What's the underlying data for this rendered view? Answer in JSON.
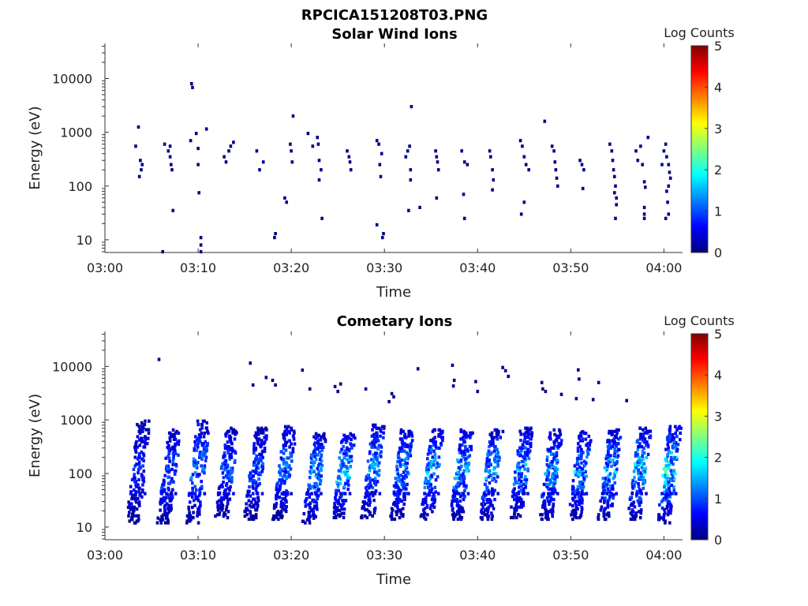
{
  "figure": {
    "file_title": "RPCICA151208T03.PNG"
  },
  "colormap": {
    "stops": [
      "#00007f",
      "#0000ff",
      "#00bfff",
      "#80ff80",
      "#ffd000",
      "#ff3000",
      "#7f0000"
    ]
  },
  "chart_data": [
    {
      "type": "heatmap",
      "title": "Solar Wind Ions",
      "xlabel": "Time",
      "ylabel": "Energy (eV)",
      "x_ticks": [
        "03:00",
        "03:10",
        "03:20",
        "03:30",
        "03:40",
        "03:50",
        "04:00"
      ],
      "xlim_minutes": [
        0,
        62
      ],
      "y_scale": "log",
      "y_ticks": [
        "10",
        "100",
        "1000",
        "10000"
      ],
      "ylim": [
        5.8,
        45000
      ],
      "colorbar": {
        "label": "Log Counts",
        "range": [
          0,
          5
        ],
        "ticks": [
          "0",
          "1",
          "2",
          "3",
          "4",
          "5"
        ]
      },
      "grid": false,
      "description_of_data": "Sparse single-count pixels (log counts ~0) scattered mostly between 30 eV and 1000 eV.",
      "points": [
        {
          "t": 3.3,
          "e": 550
        },
        {
          "t": 3.6,
          "e": 1250
        },
        {
          "t": 3.8,
          "e": 300
        },
        {
          "t": 3.9,
          "e": 200
        },
        {
          "t": 3.7,
          "e": 150
        },
        {
          "t": 4.0,
          "e": 250
        },
        {
          "t": 6.2,
          "e": 6
        },
        {
          "t": 6.4,
          "e": 600
        },
        {
          "t": 6.8,
          "e": 450
        },
        {
          "t": 7.0,
          "e": 350
        },
        {
          "t": 7.1,
          "e": 250
        },
        {
          "t": 7.2,
          "e": 200
        },
        {
          "t": 7.3,
          "e": 35
        },
        {
          "t": 7.0,
          "e": 550
        },
        {
          "t": 9.2,
          "e": 700
        },
        {
          "t": 9.3,
          "e": 8000
        },
        {
          "t": 9.4,
          "e": 6800
        },
        {
          "t": 9.8,
          "e": 950
        },
        {
          "t": 10.0,
          "e": 500
        },
        {
          "t": 10.0,
          "e": 250
        },
        {
          "t": 10.1,
          "e": 75
        },
        {
          "t": 10.3,
          "e": 11
        },
        {
          "t": 10.3,
          "e": 8
        },
        {
          "t": 10.3,
          "e": 6
        },
        {
          "t": 10.9,
          "e": 1150
        },
        {
          "t": 12.8,
          "e": 350
        },
        {
          "t": 13.0,
          "e": 280
        },
        {
          "t": 13.3,
          "e": 450
        },
        {
          "t": 13.5,
          "e": 550
        },
        {
          "t": 13.8,
          "e": 650
        },
        {
          "t": 16.3,
          "e": 450
        },
        {
          "t": 16.6,
          "e": 200
        },
        {
          "t": 17.0,
          "e": 280
        },
        {
          "t": 18.3,
          "e": 13
        },
        {
          "t": 18.2,
          "e": 11
        },
        {
          "t": 19.3,
          "e": 60
        },
        {
          "t": 19.5,
          "e": 50
        },
        {
          "t": 19.9,
          "e": 600
        },
        {
          "t": 20.0,
          "e": 450
        },
        {
          "t": 20.1,
          "e": 280
        },
        {
          "t": 20.2,
          "e": 2000
        },
        {
          "t": 21.8,
          "e": 950
        },
        {
          "t": 22.3,
          "e": 550
        },
        {
          "t": 22.8,
          "e": 800
        },
        {
          "t": 23.0,
          "e": 300
        },
        {
          "t": 23.2,
          "e": 200
        },
        {
          "t": 23.0,
          "e": 130
        },
        {
          "t": 23.3,
          "e": 25
        },
        {
          "t": 22.9,
          "e": 600
        },
        {
          "t": 26.0,
          "e": 450
        },
        {
          "t": 26.2,
          "e": 350
        },
        {
          "t": 26.3,
          "e": 280
        },
        {
          "t": 26.4,
          "e": 200
        },
        {
          "t": 29.2,
          "e": 700
        },
        {
          "t": 29.4,
          "e": 600
        },
        {
          "t": 29.5,
          "e": 250
        },
        {
          "t": 29.7,
          "e": 400
        },
        {
          "t": 29.6,
          "e": 150
        },
        {
          "t": 29.2,
          "e": 19
        },
        {
          "t": 29.9,
          "e": 13
        },
        {
          "t": 29.8,
          "e": 11
        },
        {
          "t": 32.3,
          "e": 350
        },
        {
          "t": 32.5,
          "e": 450
        },
        {
          "t": 32.7,
          "e": 550
        },
        {
          "t": 32.8,
          "e": 200
        },
        {
          "t": 32.8,
          "e": 130
        },
        {
          "t": 32.6,
          "e": 35
        },
        {
          "t": 32.9,
          "e": 3000
        },
        {
          "t": 33.8,
          "e": 40
        },
        {
          "t": 35.5,
          "e": 450
        },
        {
          "t": 35.6,
          "e": 350
        },
        {
          "t": 35.7,
          "e": 280
        },
        {
          "t": 35.8,
          "e": 200
        },
        {
          "t": 35.6,
          "e": 60
        },
        {
          "t": 38.3,
          "e": 450
        },
        {
          "t": 38.6,
          "e": 280
        },
        {
          "t": 38.9,
          "e": 250
        },
        {
          "t": 38.5,
          "e": 70
        },
        {
          "t": 38.6,
          "e": 25
        },
        {
          "t": 41.3,
          "e": 450
        },
        {
          "t": 41.4,
          "e": 350
        },
        {
          "t": 41.6,
          "e": 200
        },
        {
          "t": 41.7,
          "e": 130
        },
        {
          "t": 41.6,
          "e": 85
        },
        {
          "t": 44.6,
          "e": 700
        },
        {
          "t": 44.8,
          "e": 550
        },
        {
          "t": 45.0,
          "e": 350
        },
        {
          "t": 45.2,
          "e": 250
        },
        {
          "t": 45.0,
          "e": 50
        },
        {
          "t": 44.7,
          "e": 30
        },
        {
          "t": 45.5,
          "e": 200
        },
        {
          "t": 47.2,
          "e": 1600
        },
        {
          "t": 48.0,
          "e": 550
        },
        {
          "t": 48.2,
          "e": 450
        },
        {
          "t": 48.3,
          "e": 280
        },
        {
          "t": 48.4,
          "e": 200
        },
        {
          "t": 48.5,
          "e": 140
        },
        {
          "t": 48.6,
          "e": 100
        },
        {
          "t": 51.0,
          "e": 300
        },
        {
          "t": 51.2,
          "e": 250
        },
        {
          "t": 51.4,
          "e": 200
        },
        {
          "t": 51.3,
          "e": 90
        },
        {
          "t": 54.2,
          "e": 600
        },
        {
          "t": 54.4,
          "e": 450
        },
        {
          "t": 54.5,
          "e": 300
        },
        {
          "t": 54.6,
          "e": 200
        },
        {
          "t": 54.7,
          "e": 150
        },
        {
          "t": 54.8,
          "e": 100
        },
        {
          "t": 54.7,
          "e": 75
        },
        {
          "t": 54.9,
          "e": 60
        },
        {
          "t": 54.9,
          "e": 45
        },
        {
          "t": 54.8,
          "e": 25
        },
        {
          "t": 57.0,
          "e": 450
        },
        {
          "t": 57.2,
          "e": 300
        },
        {
          "t": 57.5,
          "e": 550
        },
        {
          "t": 57.7,
          "e": 250
        },
        {
          "t": 57.9,
          "e": 120
        },
        {
          "t": 58.0,
          "e": 95
        },
        {
          "t": 57.9,
          "e": 40
        },
        {
          "t": 57.9,
          "e": 30
        },
        {
          "t": 57.9,
          "e": 25
        },
        {
          "t": 58.3,
          "e": 800
        },
        {
          "t": 59.8,
          "e": 250
        },
        {
          "t": 60.0,
          "e": 450
        },
        {
          "t": 60.2,
          "e": 600
        },
        {
          "t": 60.3,
          "e": 350
        },
        {
          "t": 60.5,
          "e": 250
        },
        {
          "t": 60.6,
          "e": 180
        },
        {
          "t": 60.7,
          "e": 140
        },
        {
          "t": 60.5,
          "e": 100
        },
        {
          "t": 60.3,
          "e": 80
        },
        {
          "t": 60.4,
          "e": 50
        },
        {
          "t": 60.5,
          "e": 30
        },
        {
          "t": 60.2,
          "e": 25
        }
      ]
    },
    {
      "type": "heatmap",
      "title": "Cometary Ions",
      "xlabel": "Time",
      "ylabel": "Energy (eV)",
      "x_ticks": [
        "03:00",
        "03:10",
        "03:20",
        "03:30",
        "03:40",
        "03:50",
        "04:00"
      ],
      "xlim_minutes": [
        0,
        62
      ],
      "y_scale": "log",
      "y_ticks": [
        "10",
        "100",
        "1000",
        "10000"
      ],
      "ylim": [
        5.8,
        45000
      ],
      "colorbar": {
        "label": "Log Counts",
        "range": [
          0,
          5
        ],
        "ticks": [
          "0",
          "1",
          "2",
          "3",
          "4",
          "5"
        ]
      },
      "grid": false,
      "description_of_data": "Periodic vertical bands roughly every 3 minutes spanning ~15 eV to ~1000 eV, log counts mostly 0-2; sparse high-energy pixels near 10000 eV.",
      "bands": [
        {
          "t": 3.6,
          "lo": 12,
          "hi": 950,
          "peak": 0.9
        },
        {
          "t": 6.9,
          "lo": 12,
          "hi": 650,
          "peak": 1.2
        },
        {
          "t": 10.0,
          "lo": 12,
          "hi": 950,
          "peak": 1.4
        },
        {
          "t": 13.1,
          "lo": 14,
          "hi": 700,
          "peak": 1.2
        },
        {
          "t": 16.2,
          "lo": 14,
          "hi": 700,
          "peak": 1.1
        },
        {
          "t": 19.3,
          "lo": 14,
          "hi": 750,
          "peak": 1.3
        },
        {
          "t": 22.5,
          "lo": 12,
          "hi": 550,
          "peak": 1.6
        },
        {
          "t": 25.6,
          "lo": 15,
          "hi": 550,
          "peak": 1.8
        },
        {
          "t": 28.8,
          "lo": 15,
          "hi": 800,
          "peak": 1.5
        },
        {
          "t": 31.9,
          "lo": 14,
          "hi": 650,
          "peak": 1.5
        },
        {
          "t": 35.1,
          "lo": 14,
          "hi": 650,
          "peak": 1.7
        },
        {
          "t": 38.3,
          "lo": 14,
          "hi": 650,
          "peak": 1.6
        },
        {
          "t": 41.5,
          "lo": 14,
          "hi": 650,
          "peak": 1.7
        },
        {
          "t": 44.7,
          "lo": 15,
          "hi": 700,
          "peak": 1.6
        },
        {
          "t": 47.9,
          "lo": 14,
          "hi": 650,
          "peak": 1.5
        },
        {
          "t": 51.0,
          "lo": 14,
          "hi": 600,
          "peak": 1.6
        },
        {
          "t": 54.2,
          "lo": 14,
          "hi": 650,
          "peak": 1.7
        },
        {
          "t": 57.4,
          "lo": 14,
          "hi": 700,
          "peak": 1.8
        },
        {
          "t": 60.6,
          "lo": 12,
          "hi": 750,
          "peak": 2.0
        }
      ],
      "high_energy_points": [
        {
          "t": 5.8,
          "e": 13500
        },
        {
          "t": 15.6,
          "e": 11500
        },
        {
          "t": 15.9,
          "e": 4500
        },
        {
          "t": 17.3,
          "e": 6200
        },
        {
          "t": 18.0,
          "e": 5500
        },
        {
          "t": 18.3,
          "e": 4500
        },
        {
          "t": 21.2,
          "e": 8500
        },
        {
          "t": 22.0,
          "e": 3800
        },
        {
          "t": 24.7,
          "e": 4200
        },
        {
          "t": 25.0,
          "e": 3400
        },
        {
          "t": 25.3,
          "e": 4700
        },
        {
          "t": 28.0,
          "e": 3800
        },
        {
          "t": 30.8,
          "e": 3100
        },
        {
          "t": 31.0,
          "e": 2700
        },
        {
          "t": 30.5,
          "e": 2200
        },
        {
          "t": 33.6,
          "e": 9000
        },
        {
          "t": 37.3,
          "e": 10500
        },
        {
          "t": 37.5,
          "e": 5500
        },
        {
          "t": 37.4,
          "e": 4300
        },
        {
          "t": 39.8,
          "e": 5200
        },
        {
          "t": 40.0,
          "e": 3400
        },
        {
          "t": 42.7,
          "e": 9500
        },
        {
          "t": 43.0,
          "e": 8300
        },
        {
          "t": 43.3,
          "e": 6500
        },
        {
          "t": 46.9,
          "e": 5000
        },
        {
          "t": 47.0,
          "e": 3800
        },
        {
          "t": 47.3,
          "e": 3400
        },
        {
          "t": 49.0,
          "e": 3000
        },
        {
          "t": 50.8,
          "e": 8600
        },
        {
          "t": 50.9,
          "e": 5800
        },
        {
          "t": 50.6,
          "e": 2500
        },
        {
          "t": 53.0,
          "e": 5000
        },
        {
          "t": 52.4,
          "e": 2400
        },
        {
          "t": 56.0,
          "e": 2300
        }
      ]
    }
  ]
}
